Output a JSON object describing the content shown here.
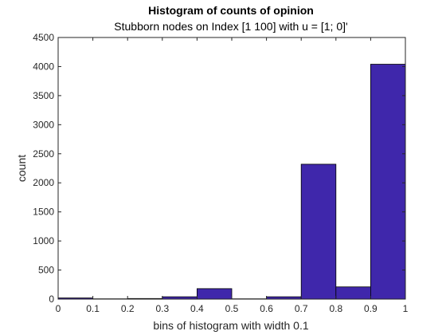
{
  "chart_data": {
    "type": "bar",
    "title": "Histogram of counts of opinion",
    "subtitle": "Stubborn nodes on Index [1 100] with u = [1; 0]'",
    "xlabel": "bins of histogram with width 0.1",
    "ylabel": "count",
    "xlim": [
      0,
      1
    ],
    "ylim": [
      0,
      4500
    ],
    "xticks": [
      "0",
      "0.1",
      "0.2",
      "0.3",
      "0.4",
      "0.5",
      "0.6",
      "0.7",
      "0.8",
      "0.9",
      "1"
    ],
    "yticks": [
      "0",
      "500",
      "1000",
      "1500",
      "2000",
      "2500",
      "3000",
      "3500",
      "4000",
      "4500"
    ],
    "bins": [
      {
        "x0": 0.0,
        "x1": 0.1,
        "value": 20
      },
      {
        "x0": 0.1,
        "x1": 0.2,
        "value": 5
      },
      {
        "x0": 0.2,
        "x1": 0.3,
        "value": 10
      },
      {
        "x0": 0.3,
        "x1": 0.4,
        "value": 40
      },
      {
        "x0": 0.4,
        "x1": 0.5,
        "value": 180
      },
      {
        "x0": 0.5,
        "x1": 0.6,
        "value": 5
      },
      {
        "x0": 0.6,
        "x1": 0.7,
        "value": 40
      },
      {
        "x0": 0.7,
        "x1": 0.8,
        "value": 2320
      },
      {
        "x0": 0.8,
        "x1": 0.9,
        "value": 210
      },
      {
        "x0": 0.9,
        "x1": 1.0,
        "value": 4040
      }
    ],
    "grid": false,
    "bar_color": "#3f27ab",
    "bar_edge_color": "#000000"
  }
}
